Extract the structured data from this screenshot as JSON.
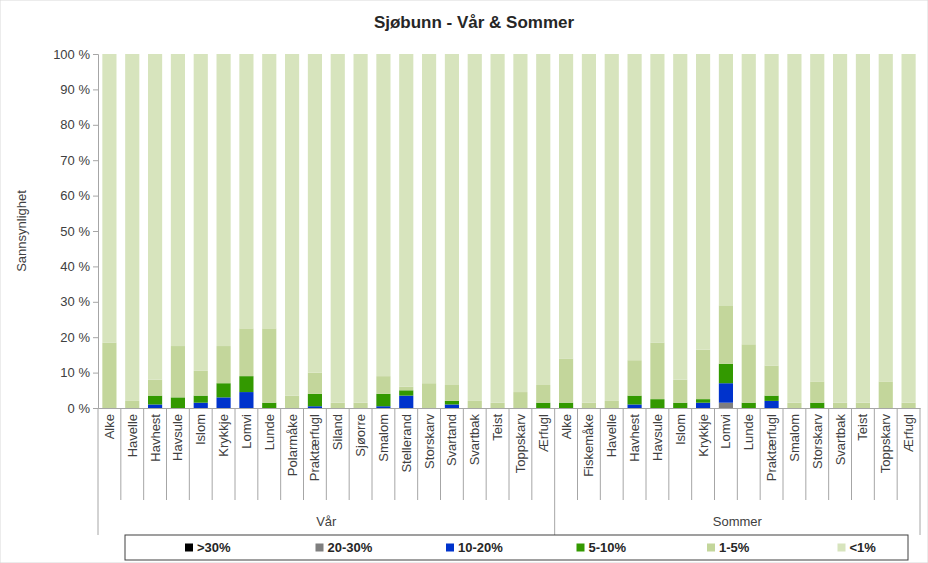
{
  "chart_data": {
    "type": "bar",
    "title": "Sjøbunn - Vår & Sommer",
    "y_label": "Sannsynlighet",
    "stacked": true,
    "grid": false,
    "legend": "bottom",
    "categories": [
      "Alke",
      "Havelle",
      "Havhest",
      "Havsule",
      "Islom",
      "Krykkje",
      "Lomvi",
      "Lunde",
      "Polarmåke",
      "Praktærfugl",
      "Siland",
      "Sjøorre",
      "Smalom",
      "Stellerand",
      "Storskarv",
      "Svartand",
      "Svartbak",
      "Teist",
      "Toppskarv",
      "Ærfugl",
      "Alke",
      "Fiskemåke",
      "Havelle",
      "Havhest",
      "Havsule",
      "Islom",
      "Krykkje",
      "Lomvi",
      "Lunde",
      "Praktærfugl",
      "Smalom",
      "Storskarv",
      "Svartbak",
      "Teist",
      "Toppskarv",
      "Ærfugl"
    ],
    "groups": [
      {
        "name": "Vår",
        "count": 20
      },
      {
        "name": "Sommer",
        "count": 16
      }
    ],
    "ylim": [
      0,
      100
    ],
    "yticks": [
      {
        "value": 0,
        "label": "0 %"
      },
      {
        "value": 10,
        "label": "10 %"
      },
      {
        "value": 20,
        "label": "20 %"
      },
      {
        "value": 30,
        "label": "30 %"
      },
      {
        "value": 40,
        "label": "40 %"
      },
      {
        "value": 50,
        "label": "50 %"
      },
      {
        "value": 60,
        "label": "60 %"
      },
      {
        "value": 70,
        "label": "70 %"
      },
      {
        "value": 80,
        "label": "80 %"
      },
      {
        "value": 90,
        "label": "90 %"
      },
      {
        "value": 100,
        "label": "100 %"
      }
    ],
    "series": [
      {
        "name": ">30%",
        "color": "#000000",
        "values": [
          0,
          0,
          0,
          0,
          0,
          0,
          0,
          0,
          0,
          0,
          0,
          0,
          0,
          0,
          0,
          0,
          0,
          0,
          0,
          0,
          0,
          0,
          0,
          0,
          0,
          0,
          0,
          0,
          0,
          0,
          0,
          0,
          0,
          0,
          0,
          0
        ]
      },
      {
        "name": "20-30%",
        "color": "#7f7f7f",
        "values": [
          0,
          0,
          0,
          0,
          0,
          0,
          0,
          0,
          0,
          0,
          0,
          0,
          0,
          0,
          0,
          0,
          0,
          0,
          0,
          0,
          0,
          0,
          0,
          0,
          0,
          0,
          0,
          1.5,
          0,
          0,
          0,
          0,
          0,
          0,
          0,
          0
        ]
      },
      {
        "name": "10-20%",
        "color": "#0033cc",
        "values": [
          0,
          0,
          1,
          0,
          1.5,
          3,
          4.5,
          0,
          0,
          0.5,
          0,
          0,
          0.5,
          3.5,
          0,
          1,
          0,
          0,
          0,
          0,
          0,
          0,
          0,
          1,
          0,
          0,
          1.5,
          5.5,
          0,
          2,
          0,
          0,
          0,
          0,
          0,
          0
        ]
      },
      {
        "name": "5-10%",
        "color": "#339900",
        "values": [
          0,
          0,
          2.5,
          3,
          2,
          4,
          4.5,
          1.5,
          0,
          3.5,
          0,
          0,
          3.5,
          1.5,
          0,
          1,
          0,
          0,
          0,
          1.5,
          1.5,
          0,
          0,
          2.5,
          2.5,
          1.5,
          1,
          5.5,
          1.5,
          1.5,
          0,
          1.5,
          0,
          0,
          0,
          0
        ]
      },
      {
        "name": "1-5%",
        "color": "#c3d69b",
        "values": [
          18.5,
          2,
          4.5,
          14.5,
          7,
          10.5,
          13.5,
          21,
          3.5,
          6,
          1.5,
          1.5,
          5,
          1,
          7,
          4.5,
          2,
          1.5,
          4.5,
          5,
          12.5,
          1.5,
          2,
          10,
          16,
          6.5,
          14,
          16.5,
          16.5,
          8.5,
          1.5,
          6,
          1.5,
          1.5,
          7.5,
          1.5
        ]
      },
      {
        "name": "<1%",
        "color": "#d7e4bd",
        "values": [
          81.5,
          98,
          92,
          82.5,
          89.5,
          82.5,
          77.5,
          77.5,
          96.5,
          90,
          98.5,
          98.5,
          91,
          94,
          93,
          93.5,
          98,
          98.5,
          95.5,
          93.5,
          86,
          98.5,
          98,
          86.5,
          81.5,
          92,
          83.5,
          71,
          82,
          88,
          98.5,
          92.5,
          98.5,
          98.5,
          92.5,
          98.5
        ]
      }
    ]
  }
}
